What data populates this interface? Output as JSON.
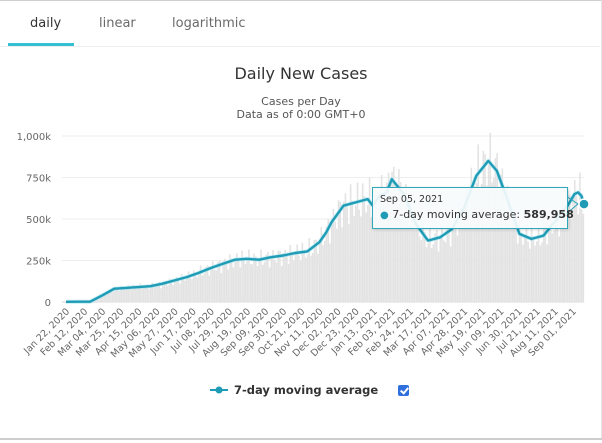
{
  "tabs": [
    {
      "label": "daily",
      "active": true
    },
    {
      "label": "linear",
      "active": false
    },
    {
      "label": "logarithmic",
      "active": false
    }
  ],
  "colors": {
    "line": "#1f9bb5",
    "accent": "#35bfd4",
    "bars": "#e3e3e3",
    "grid": "#eeeeee",
    "checkbox": "#2f6fde"
  },
  "chart_data": {
    "type": "line",
    "title": "Daily New Cases",
    "subtitle": "Cases per Day",
    "subtitle2": "Data as of 0:00 GMT+0",
    "xlabel": "",
    "ylabel": "",
    "ylim": [
      0,
      1000000
    ],
    "yticks": [
      0,
      250000,
      500000,
      750000,
      1000000
    ],
    "ytick_labels": [
      "0",
      "250k",
      "500k",
      "750k",
      "1,000k"
    ],
    "grid": true,
    "x_start": "Jan 22, 2020",
    "x_end": "Sep 05, 2021",
    "xtick_labels": [
      "Jan 22, 2020",
      "Feb 12, 2020",
      "Mar 04, 2020",
      "Mar 25, 2020",
      "Apr 15, 2020",
      "May 06, 2020",
      "May 27, 2020",
      "Jun 17, 2020",
      "Jul 08, 2020",
      "Jul 29, 2020",
      "Aug 19, 2020",
      "Sep 09, 2020",
      "Sep 30, 2020",
      "Oct 21, 2020",
      "Nov 11, 2020",
      "Dec 02, 2020",
      "Dec 23, 2020",
      "Jan 13, 2021",
      "Feb 03, 2021",
      "Feb 24, 2021",
      "Mar 17, 2021",
      "Apr 07, 2021",
      "Apr 28, 2021",
      "May 19, 2021",
      "Jun 09, 2021",
      "Jun 30, 2021",
      "Jul 21, 2021",
      "Aug 11, 2021",
      "Sep 01, 2021"
    ],
    "legend": "bottom",
    "series": [
      {
        "name": "7-day moving average",
        "x_day_offsets": [
          0,
          14,
          28,
          42,
          56,
          70,
          84,
          98,
          112,
          126,
          140,
          154,
          168,
          182,
          196,
          210,
          224,
          238,
          252,
          266,
          280,
          294,
          302,
          308,
          322,
          336,
          350,
          356,
          364,
          372,
          378,
          392,
          406,
          420,
          434,
          448,
          462,
          476,
          490,
          500,
          512,
          526,
          540,
          554,
          568,
          582,
          590,
          594,
          598,
          601
        ],
        "values": [
          1000,
          2000,
          2000,
          40000,
          80000,
          85000,
          90000,
          95000,
          110000,
          130000,
          150000,
          175000,
          205000,
          230000,
          255000,
          260000,
          255000,
          270000,
          280000,
          295000,
          305000,
          360000,
          420000,
          480000,
          580000,
          600000,
          620000,
          580000,
          640000,
          660000,
          740000,
          650000,
          470000,
          370000,
          390000,
          440000,
          570000,
          760000,
          850000,
          790000,
          620000,
          410000,
          380000,
          400000,
          490000,
          580000,
          650000,
          660000,
          640000,
          589958
        ]
      }
    ],
    "bars_note": "daily new cases shown as light gray bars",
    "tooltip": {
      "date": "Sep 05, 2021",
      "series": "7-day moving average",
      "label": "7-day moving average: ",
      "value": "589,958"
    }
  },
  "legend": {
    "label": "7-day moving average",
    "checked": true
  }
}
